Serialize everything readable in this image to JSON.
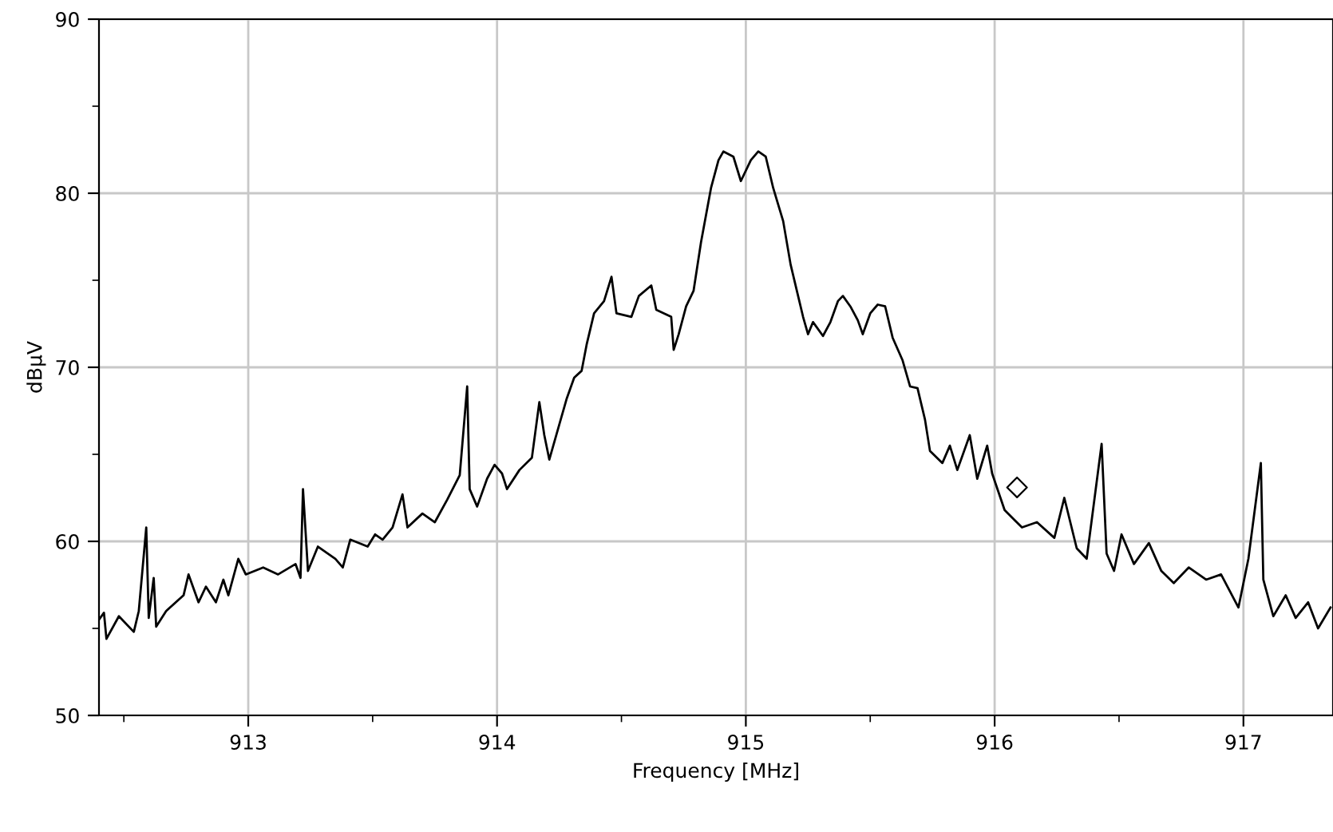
{
  "chart_data": {
    "type": "line",
    "xlabel": "Frequency [MHz]",
    "ylabel": "dBµV",
    "xlim": [
      912.4,
      917.36
    ],
    "ylim": [
      50,
      90
    ],
    "xticks": [
      {
        "value": 912.5,
        "label": null
      },
      913,
      {
        "value": 913.5,
        "label": null
      },
      914,
      {
        "value": 914.5,
        "label": null
      },
      915,
      {
        "value": 915.5,
        "label": null
      },
      916,
      {
        "value": 916.5,
        "label": null
      },
      917
    ],
    "yticks": [
      50,
      {
        "value": 55,
        "label": null
      },
      60,
      {
        "value": 65,
        "label": null
      },
      70,
      {
        "value": 75,
        "label": null
      },
      80,
      {
        "value": 85,
        "label": null
      },
      90
    ],
    "grid": true,
    "legend": false,
    "series": [
      {
        "color": "#000000",
        "marker": "none",
        "line_style": "solid",
        "x": [
          912.4,
          912.42,
          912.43,
          912.48,
          912.54,
          912.56,
          912.59,
          912.6,
          912.62,
          912.63,
          912.67,
          912.74,
          912.76,
          912.8,
          912.83,
          912.87,
          912.9,
          912.92,
          912.96,
          912.99,
          913.06,
          913.12,
          913.19,
          913.21,
          913.22,
          913.24,
          913.28,
          913.35,
          913.38,
          913.41,
          913.48,
          913.51,
          913.54,
          913.58,
          913.62,
          913.64,
          913.7,
          913.75,
          913.8,
          913.85,
          913.88,
          913.89,
          913.92,
          913.96,
          913.99,
          914.02,
          914.04,
          914.09,
          914.14,
          914.17,
          914.19,
          914.21,
          914.25,
          914.28,
          914.31,
          914.34,
          914.36,
          914.39,
          914.43,
          914.46,
          914.48,
          914.54,
          914.57,
          914.62,
          914.64,
          914.7,
          914.71,
          914.73,
          914.76,
          914.79,
          914.82,
          914.86,
          914.89,
          914.91,
          914.95,
          914.98,
          915.02,
          915.05,
          915.08,
          915.11,
          915.15,
          915.18,
          915.21,
          915.23,
          915.25,
          915.27,
          915.31,
          915.34,
          915.37,
          915.39,
          915.42,
          915.45,
          915.47,
          915.5,
          915.53,
          915.56,
          915.59,
          915.63,
          915.66,
          915.69,
          915.72,
          915.74,
          915.79,
          915.82,
          915.85,
          915.9,
          915.93,
          915.97,
          915.99,
          916.04,
          916.11,
          916.17,
          916.24,
          916.28,
          916.33,
          916.37,
          916.43,
          916.45,
          916.48,
          916.51,
          916.56,
          916.62,
          916.67,
          916.72,
          916.78,
          916.85,
          916.91,
          916.98,
          917.02,
          917.07,
          917.08,
          917.12,
          917.17,
          917.21,
          917.26,
          917.3,
          917.35
        ],
        "values": [
          55.5,
          55.9,
          54.4,
          55.7,
          54.8,
          56.0,
          60.8,
          55.6,
          57.9,
          55.1,
          56.0,
          56.9,
          58.1,
          56.5,
          57.4,
          56.5,
          57.8,
          56.9,
          59.0,
          58.1,
          58.5,
          58.1,
          58.7,
          57.9,
          63.0,
          58.3,
          59.7,
          59.0,
          58.5,
          60.1,
          59.7,
          60.4,
          60.1,
          60.8,
          62.7,
          60.8,
          61.6,
          61.1,
          62.4,
          63.8,
          68.9,
          63.0,
          62.0,
          63.6,
          64.4,
          63.9,
          63.0,
          64.1,
          64.8,
          68.0,
          66.1,
          64.7,
          66.7,
          68.2,
          69.4,
          69.8,
          71.3,
          73.1,
          73.8,
          75.2,
          73.1,
          72.9,
          74.1,
          74.7,
          73.3,
          72.9,
          71.0,
          71.9,
          73.5,
          74.4,
          77.2,
          80.3,
          81.9,
          82.4,
          82.1,
          80.7,
          81.9,
          82.4,
          82.1,
          80.3,
          78.4,
          75.9,
          74.1,
          72.9,
          71.9,
          72.6,
          71.8,
          72.6,
          73.8,
          74.1,
          73.5,
          72.7,
          71.9,
          73.1,
          73.6,
          73.5,
          71.7,
          70.4,
          68.9,
          68.8,
          67.0,
          65.2,
          64.5,
          65.5,
          64.1,
          66.1,
          63.6,
          65.5,
          63.9,
          61.8,
          60.8,
          61.1,
          60.2,
          62.5,
          59.6,
          59.0,
          65.6,
          59.3,
          58.3,
          60.4,
          58.7,
          59.9,
          58.3,
          57.6,
          58.5,
          57.8,
          58.1,
          56.2,
          59.0,
          64.5,
          57.8,
          55.7,
          56.9,
          55.6,
          56.5,
          55.0,
          56.2
        ]
      },
      {
        "type": "scatter",
        "color": "#000000",
        "marker": "diamond",
        "x": [
          916.09
        ],
        "values": [
          63.1
        ]
      }
    ]
  }
}
